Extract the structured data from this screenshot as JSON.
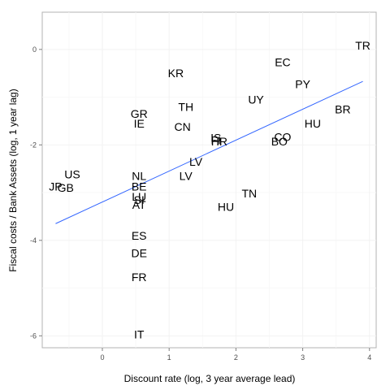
{
  "chart_data": {
    "type": "scatter",
    "title": "",
    "xlabel": "Discount rate (log, 3 year average lead)",
    "ylabel": "Fiscal costs / Bank Assets (log, 1 year lag)",
    "xlim": [
      -0.9,
      4.1
    ],
    "ylim": [
      -6.25,
      0.78
    ],
    "xticks": [
      0,
      1,
      2,
      3,
      4
    ],
    "yticks": [
      0,
      -2,
      -4,
      -6
    ],
    "grid": true,
    "legend": "none",
    "colors": {
      "panel_border": "#b3b3b3",
      "grid": "#f2f2f2",
      "fit_line": "#3366ff",
      "text": "#000000"
    },
    "points": [
      {
        "label": "TR",
        "x": 3.9,
        "y": 0.08
      },
      {
        "label": "EC",
        "x": 2.7,
        "y": -0.27
      },
      {
        "label": "KR",
        "x": 1.1,
        "y": -0.5
      },
      {
        "label": "PY",
        "x": 3.0,
        "y": -0.73
      },
      {
        "label": "UY",
        "x": 2.3,
        "y": -1.05
      },
      {
        "label": "TH",
        "x": 1.25,
        "y": -1.2
      },
      {
        "label": "BR",
        "x": 3.6,
        "y": -1.25
      },
      {
        "label": "GR",
        "x": 0.55,
        "y": -1.35
      },
      {
        "label": "IE",
        "x": 0.55,
        "y": -1.55
      },
      {
        "label": "HU",
        "x": 3.15,
        "y": -1.55
      },
      {
        "label": "CN",
        "x": 1.2,
        "y": -1.62
      },
      {
        "label": "CO",
        "x": 2.7,
        "y": -1.83
      },
      {
        "label": "IS",
        "x": 1.7,
        "y": -1.85
      },
      {
        "label": "FI",
        "x": 1.7,
        "y": -1.9
      },
      {
        "label": "HR",
        "x": 1.75,
        "y": -1.93
      },
      {
        "label": "BO",
        "x": 2.65,
        "y": -1.93
      },
      {
        "label": "LV",
        "x": 1.4,
        "y": -2.35
      },
      {
        "label": "US",
        "x": -0.45,
        "y": -2.62
      },
      {
        "label": "NL",
        "x": 0.55,
        "y": -2.65
      },
      {
        "label": "LV",
        "x": 1.25,
        "y": -2.65
      },
      {
        "label": "JP",
        "x": -0.7,
        "y": -2.87
      },
      {
        "label": "GB",
        "x": -0.55,
        "y": -2.9
      },
      {
        "label": "BE",
        "x": 0.55,
        "y": -2.87
      },
      {
        "label": "TN",
        "x": 2.2,
        "y": -3.02
      },
      {
        "label": "LU",
        "x": 0.55,
        "y": -3.08
      },
      {
        "label": "SI",
        "x": 0.55,
        "y": -3.15
      },
      {
        "label": "AT",
        "x": 0.55,
        "y": -3.25
      },
      {
        "label": "HU",
        "x": 1.85,
        "y": -3.3
      },
      {
        "label": "ES",
        "x": 0.55,
        "y": -3.9
      },
      {
        "label": "DE",
        "x": 0.55,
        "y": -4.27
      },
      {
        "label": "FR",
        "x": 0.55,
        "y": -4.77
      },
      {
        "label": "IT",
        "x": 0.55,
        "y": -5.97
      }
    ],
    "fit_line": {
      "x": [
        -0.7,
        3.9
      ],
      "y": [
        -3.65,
        -0.67
      ]
    }
  }
}
